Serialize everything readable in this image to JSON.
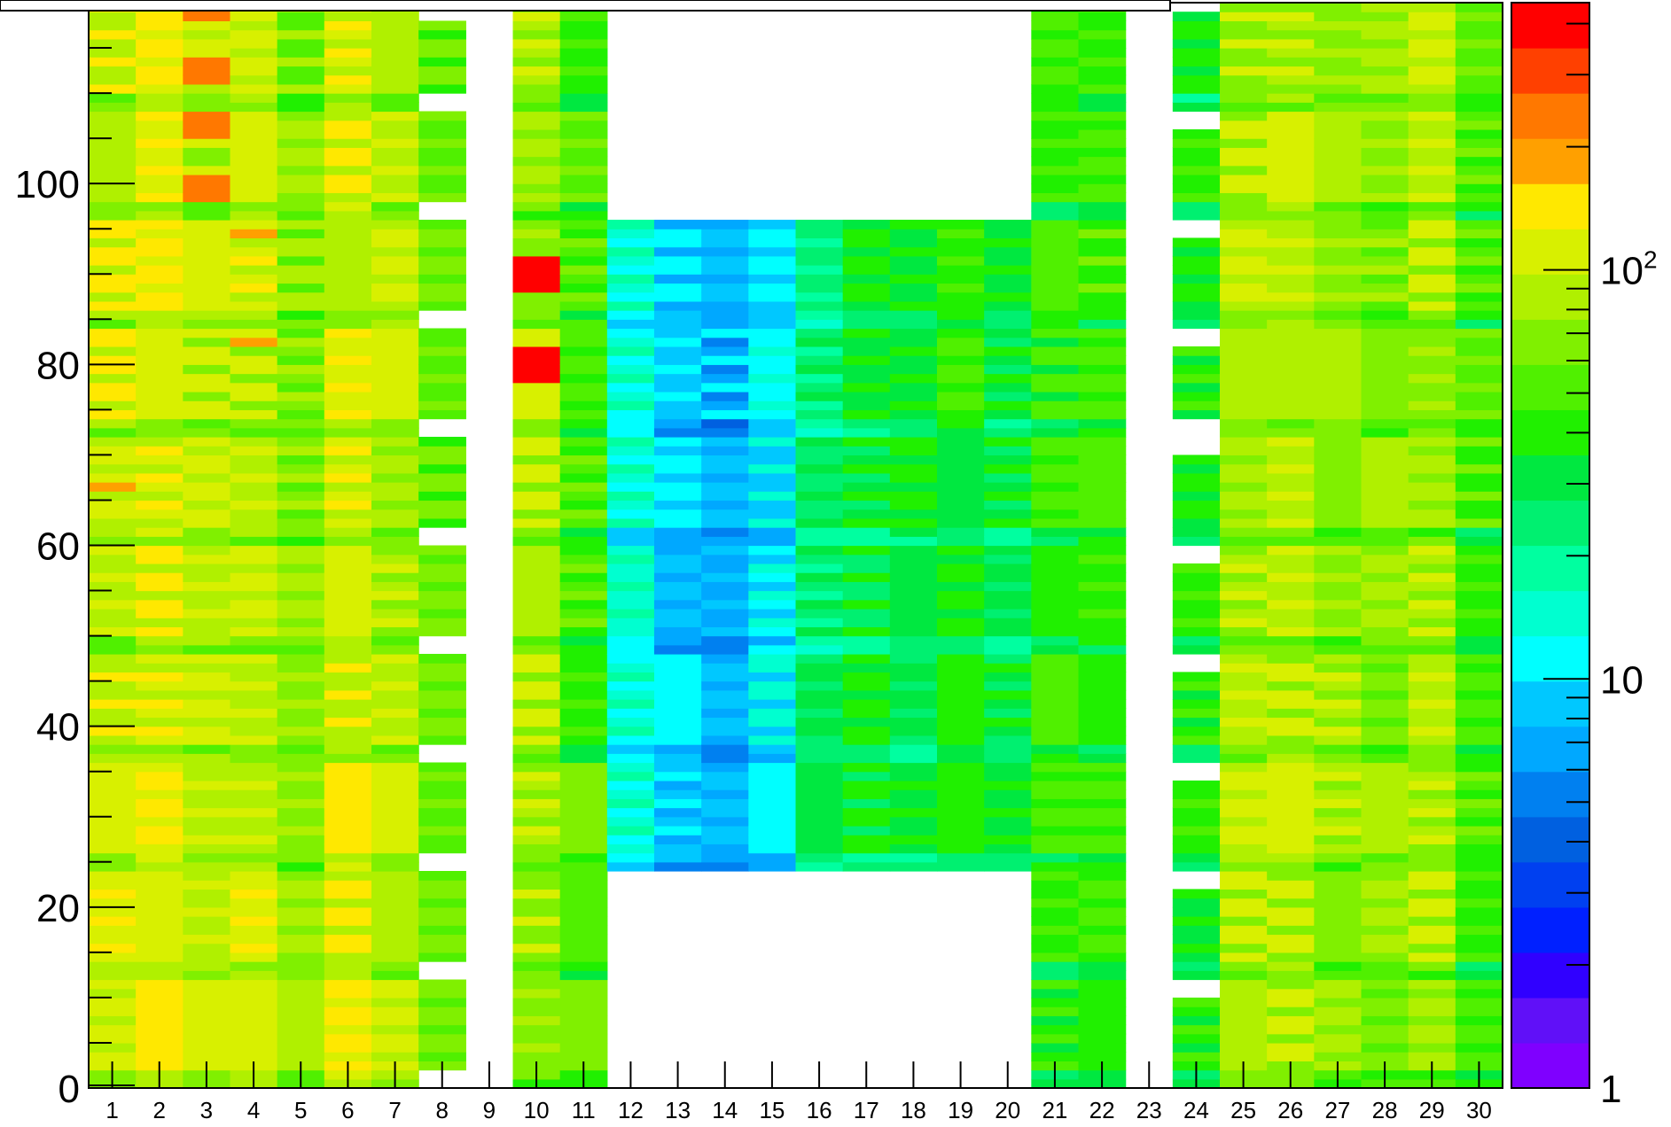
{
  "chart_data": {
    "type": "heatmap",
    "title": "",
    "xlabel": "",
    "ylabel": "",
    "x_categories": [
      "1",
      "2",
      "3",
      "4",
      "5",
      "6",
      "7",
      "8",
      "9",
      "10",
      "11",
      "12",
      "13",
      "14",
      "15",
      "16",
      "17",
      "18",
      "19",
      "20",
      "21",
      "22",
      "23",
      "24",
      "25",
      "26",
      "27",
      "28",
      "29",
      "30"
    ],
    "y_bins": 120,
    "y_range": [
      0,
      120
    ],
    "y_ticks": [
      "0",
      "20",
      "40",
      "60",
      "80",
      "100"
    ],
    "color_scale": "log",
    "z_range": [
      1,
      450
    ],
    "z_ticks": [
      {
        "value": 1,
        "base": "1",
        "exp": ""
      },
      {
        "value": 10,
        "base": "10",
        "exp": ""
      },
      {
        "value": 100,
        "base": "10",
        "exp": "2"
      }
    ],
    "palette": [
      "#7f00ff",
      "#6010f8",
      "#3000ff",
      "#0020ff",
      "#0040f0",
      "#0060e0",
      "#0080f0",
      "#00a8ff",
      "#00c8ff",
      "#00ffff",
      "#00ffd0",
      "#00ffa0",
      "#00f070",
      "#00e840",
      "#20f000",
      "#50f000",
      "#80f000",
      "#b0f000",
      "#d8f000",
      "#ffe800",
      "#ffa000",
      "#ff7800",
      "#ff4000",
      "#ff0000"
    ],
    "empty_regions": [
      {
        "columns": [
          8
        ],
        "y_bins": [
          [
            0,
            2
          ],
          [
            12,
            14
          ],
          [
            24,
            26
          ],
          [
            36,
            38
          ],
          [
            48,
            50
          ],
          [
            60,
            62
          ],
          [
            72,
            74
          ],
          [
            84,
            86
          ],
          [
            96,
            98
          ],
          [
            108,
            110
          ],
          [
            118,
            120
          ]
        ]
      },
      {
        "columns": [
          9
        ],
        "y_bins": [
          [
            0,
            120
          ]
        ]
      },
      {
        "columns": [
          12,
          13,
          14,
          15,
          16,
          17,
          18,
          19,
          20
        ],
        "y_bins": [
          [
            0,
            24
          ],
          [
            96,
            120
          ]
        ]
      },
      {
        "columns": [
          23
        ],
        "y_bins": [
          [
            0,
            120
          ]
        ]
      },
      {
        "columns": [
          24
        ],
        "y_bins": [
          [
            10,
            12
          ],
          [
            22,
            24
          ],
          [
            34,
            36
          ],
          [
            46,
            48
          ],
          [
            58,
            60
          ],
          [
            70,
            74
          ],
          [
            82,
            84
          ],
          [
            94,
            96
          ],
          [
            106,
            108
          ],
          [
            119,
            120
          ]
        ]
      }
    ],
    "column_base_values": [
      110,
      115,
      95,
      100,
      75,
      120,
      95,
      60,
      0,
      85,
      55,
      14,
      10,
      8,
      12,
      28,
      35,
      32,
      42,
      32,
      45,
      48,
      0,
      40,
      90,
      95,
      80,
      75,
      85,
      50
    ],
    "highlights": [
      {
        "column": 3,
        "y_bins": [
          [
            118,
            120
          ],
          [
            111,
            114
          ],
          [
            105,
            108
          ],
          [
            98,
            101
          ]
        ],
        "value": 220
      },
      {
        "column": 10,
        "y_bins": [
          [
            88,
            92
          ],
          [
            78,
            82
          ]
        ],
        "value": 420
      },
      {
        "column": 4,
        "y_bins": [
          [
            94,
            95
          ],
          [
            82,
            83
          ]
        ],
        "value": 200
      },
      {
        "column": 1,
        "y_bins": [
          [
            66,
            67
          ]
        ],
        "value": 200
      }
    ]
  }
}
